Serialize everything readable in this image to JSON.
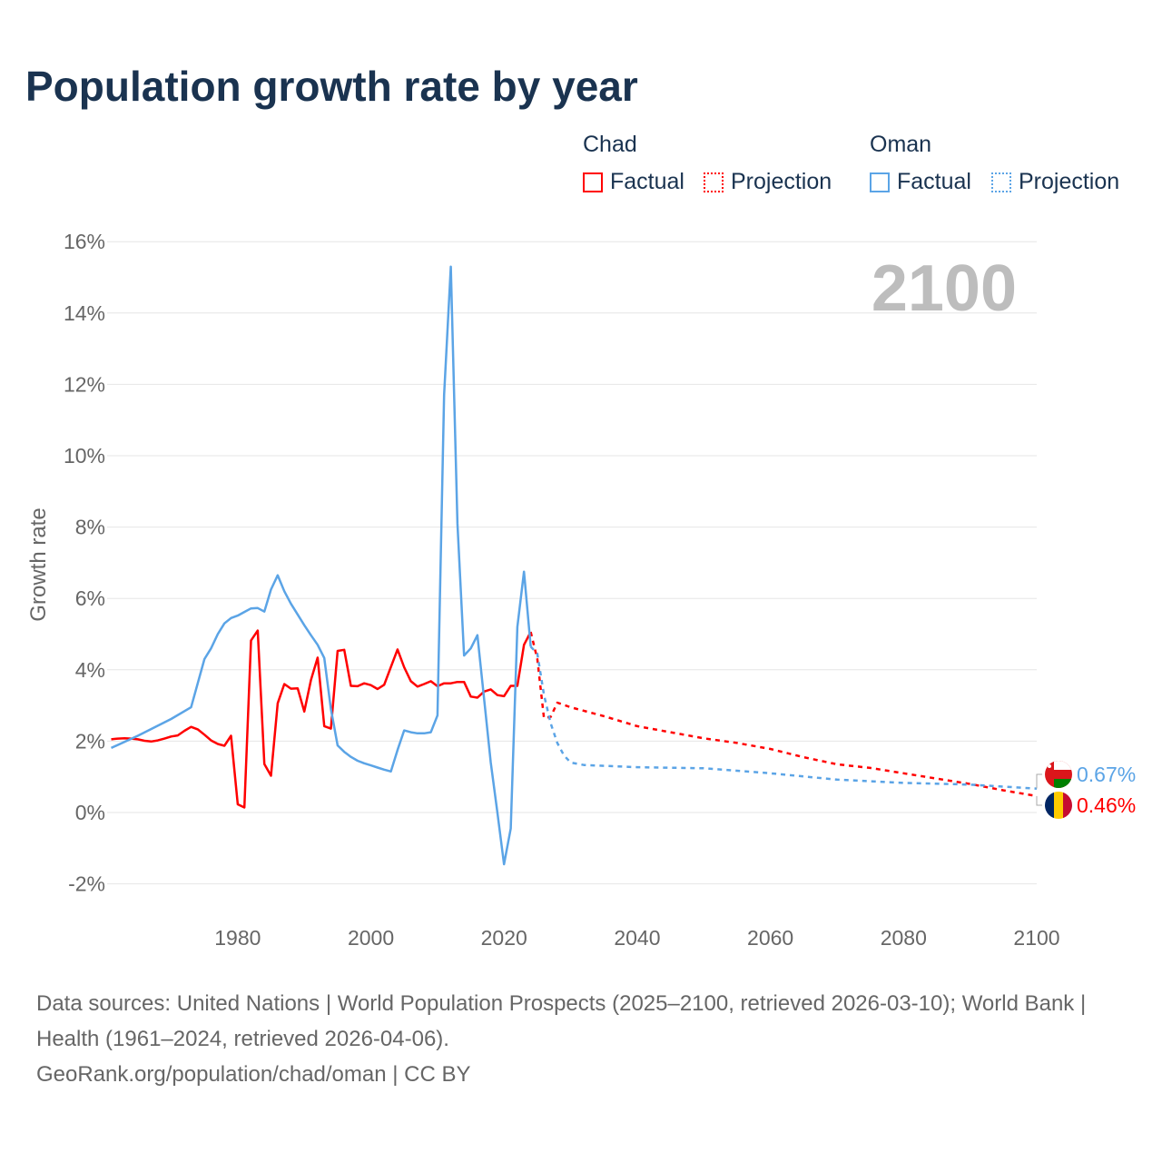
{
  "title": "Population growth rate by year",
  "legend": {
    "groups": [
      {
        "name": "Chad",
        "factual": "Factual",
        "projection": "Projection",
        "color": "#ff0000"
      },
      {
        "name": "Oman",
        "factual": "Factual",
        "projection": "Projection",
        "color": "#5ba4e6"
      }
    ]
  },
  "year_label": "2100",
  "chart_data": {
    "type": "line",
    "title": "Population growth rate by year",
    "ylabel": "Growth rate",
    "xlabel": "",
    "xlim": [
      1961,
      2100
    ],
    "ylim": [
      -3,
      16.5
    ],
    "x_ticks": [
      1980,
      2000,
      2020,
      2040,
      2060,
      2080,
      2100
    ],
    "x_tick_labels": [
      "1980",
      "2000",
      "2020",
      "2040",
      "2060",
      "2080",
      "2100"
    ],
    "y_ticks": [
      -2,
      0,
      2,
      4,
      6,
      8,
      10,
      12,
      14,
      16
    ],
    "y_tick_labels": [
      "-2%",
      "0%",
      "2%",
      "4%",
      "6%",
      "8%",
      "10%",
      "12%",
      "14%",
      "16%"
    ],
    "grid": true,
    "series": [
      {
        "name": "Chad Factual",
        "color": "#ff0000",
        "dash": false,
        "x": [
          1961,
          1962,
          1963,
          1964,
          1965,
          1966,
          1967,
          1968,
          1969,
          1970,
          1971,
          1972,
          1973,
          1974,
          1975,
          1976,
          1977,
          1978,
          1979,
          1980,
          1981,
          1982,
          1983,
          1984,
          1985,
          1986,
          1987,
          1988,
          1989,
          1990,
          1991,
          1992,
          1993,
          1994,
          1995,
          1996,
          1997,
          1998,
          1999,
          2000,
          2001,
          2002,
          2003,
          2004,
          2005,
          2006,
          2007,
          2008,
          2009,
          2010,
          2011,
          2012,
          2013,
          2014,
          2015,
          2016,
          2017,
          2018,
          2019,
          2020,
          2021,
          2022,
          2023,
          2024
        ],
        "y": [
          2.05,
          2.07,
          2.08,
          2.07,
          2.05,
          2.01,
          1.99,
          2.02,
          2.07,
          2.13,
          2.16,
          2.29,
          2.4,
          2.33,
          2.18,
          2.02,
          1.92,
          1.87,
          2.15,
          0.23,
          0.14,
          4.82,
          5.1,
          1.36,
          1.03,
          3.06,
          3.6,
          3.47,
          3.48,
          2.83,
          3.71,
          4.34,
          2.42,
          2.35,
          4.53,
          4.56,
          3.55,
          3.54,
          3.62,
          3.57,
          3.46,
          3.58,
          4.08,
          4.57,
          4.07,
          3.68,
          3.53,
          3.6,
          3.68,
          3.54,
          3.62,
          3.62,
          3.66,
          3.66,
          3.25,
          3.22,
          3.39,
          3.45,
          3.29,
          3.26,
          3.55,
          3.55,
          4.7,
          5.06
        ]
      },
      {
        "name": "Chad Projection",
        "color": "#ff0000",
        "dash": true,
        "x": [
          2024,
          2025,
          2026,
          2027,
          2028,
          2030,
          2035,
          2040,
          2045,
          2050,
          2055,
          2060,
          2065,
          2070,
          2075,
          2080,
          2085,
          2090,
          2095,
          2100
        ],
        "y": [
          5.06,
          4.3,
          2.65,
          2.68,
          3.08,
          2.95,
          2.7,
          2.42,
          2.25,
          2.08,
          1.95,
          1.78,
          1.55,
          1.35,
          1.25,
          1.1,
          0.95,
          0.8,
          0.62,
          0.46
        ]
      },
      {
        "name": "Oman Factual",
        "color": "#5ba4e6",
        "dash": false,
        "x": [
          1961,
          1965,
          1970,
          1973,
          1975,
          1976,
          1977,
          1978,
          1979,
          1980,
          1981,
          1982,
          1983,
          1984,
          1985,
          1986,
          1987,
          1988,
          1989,
          1990,
          1991,
          1992,
          1993,
          1994,
          1995,
          1996,
          1997,
          1998,
          1999,
          2000,
          2001,
          2002,
          2003,
          2004,
          2005,
          2006,
          2007,
          2008,
          2009,
          2010,
          2011,
          2012,
          2013,
          2014,
          2015,
          2016,
          2017,
          2018,
          2019,
          2020,
          2021,
          2022,
          2023,
          2024
        ],
        "y": [
          1.81,
          2.15,
          2.62,
          2.95,
          4.3,
          4.6,
          5.0,
          5.3,
          5.45,
          5.52,
          5.62,
          5.72,
          5.73,
          5.63,
          6.25,
          6.65,
          6.2,
          5.85,
          5.55,
          5.25,
          4.97,
          4.7,
          4.33,
          2.9,
          1.88,
          1.7,
          1.56,
          1.45,
          1.38,
          1.32,
          1.26,
          1.2,
          1.15,
          1.75,
          2.3,
          2.25,
          2.22,
          2.22,
          2.25,
          2.72,
          11.7,
          15.3,
          8.1,
          4.4,
          4.6,
          4.97,
          3.2,
          1.4,
          0.0,
          -1.45,
          -0.45,
          5.2,
          6.75,
          4.65
        ]
      },
      {
        "name": "Oman Projection",
        "color": "#5ba4e6",
        "dash": true,
        "x": [
          2024,
          2025,
          2026,
          2027,
          2028,
          2029,
          2030,
          2032,
          2040,
          2050,
          2060,
          2070,
          2080,
          2090,
          2100
        ],
        "y": [
          4.65,
          4.45,
          3.3,
          2.5,
          1.95,
          1.6,
          1.4,
          1.33,
          1.27,
          1.24,
          1.1,
          0.92,
          0.83,
          0.78,
          0.67
        ]
      }
    ],
    "end_labels": [
      {
        "country": "Oman",
        "value": "0.67%",
        "color": "#5ba4e6"
      },
      {
        "country": "Chad",
        "value": "0.46%",
        "color": "#ff0000"
      }
    ]
  },
  "footer": {
    "sources": "Data sources: United Nations | World Population Prospects (2025–2100, retrieved 2026-03-10); World Bank | Health (1961–2024, retrieved 2026-04-06).",
    "credit": "GeoRank.org/population/chad/oman | CC BY"
  }
}
